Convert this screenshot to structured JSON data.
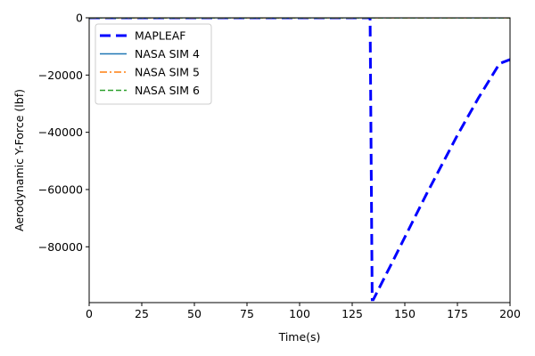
{
  "chart_data": {
    "type": "line",
    "title": "",
    "xlabel": "Time(s)",
    "ylabel": "Aerodynamic Y-Force (lbf)",
    "xlim": [
      0,
      200
    ],
    "ylim": [
      -99500,
      0
    ],
    "x_ticks": [
      0,
      25,
      50,
      75,
      100,
      125,
      150,
      175,
      200
    ],
    "x_tick_labels": [
      "0",
      "25",
      "50",
      "75",
      "100",
      "125",
      "150",
      "175",
      "200"
    ],
    "y_ticks": [
      0,
      -20000,
      -40000,
      -60000,
      -80000
    ],
    "y_tick_labels": [
      "0",
      "−20000",
      "−40000",
      "−60000",
      "−80000"
    ],
    "grid": false,
    "legend_position": "upper left",
    "series": [
      {
        "name": "MAPLEAF",
        "color": "#0000ff",
        "dash": "dashed",
        "x": [
          0,
          133.5,
          134.5,
          135,
          145,
          160,
          175,
          185,
          195,
          200
        ],
        "y": [
          0,
          0,
          -98500,
          -98500,
          -84000,
          -62000,
          -41000,
          -28000,
          -16000,
          -14600
        ]
      },
      {
        "name": "NASA SIM 4",
        "color": "#1f77b4",
        "dash": "solid",
        "x": [
          0,
          200
        ],
        "y": [
          0,
          0
        ]
      },
      {
        "name": "NASA SIM 5",
        "color": "#ff7f0e",
        "dash": "dashdot",
        "x": [
          0,
          200
        ],
        "y": [
          0,
          0
        ]
      },
      {
        "name": "NASA SIM 6",
        "color": "#2ca02c",
        "dash": "dashed",
        "x": [
          0,
          200
        ],
        "y": [
          0,
          0
        ]
      }
    ]
  }
}
